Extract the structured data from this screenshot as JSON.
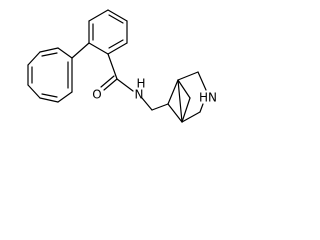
{
  "atoms": {
    "oxygen": "O",
    "amide_nitrogen": "N",
    "amide_hydrogen": "H",
    "ring_amine": "HN"
  }
}
